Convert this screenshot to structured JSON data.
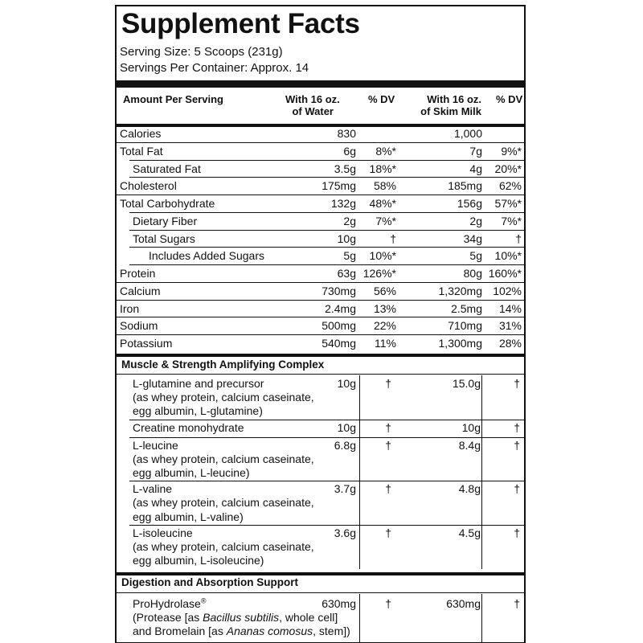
{
  "title": "Supplement Facts",
  "serving_size": "Serving Size: 5 Scoops (231g)",
  "servings_per_container": "Servings Per Container: Approx. 14",
  "header": {
    "amount": "Amount Per Serving",
    "water_line1": "With 16 oz.",
    "water_line2": "of Water",
    "dv1": "% DV",
    "milk_line1": "With 16 oz.",
    "milk_line2": "of Skim Milk",
    "dv2": "% DV"
  },
  "nutrients": [
    {
      "name": "Calories",
      "water": "830",
      "dv1": "",
      "milk": "1,000",
      "dv2": "",
      "indent": 0
    },
    {
      "name": "Total Fat",
      "water": "6g",
      "dv1": "8%*",
      "milk": "7g",
      "dv2": "9%*",
      "indent": 0
    },
    {
      "name": "Saturated Fat",
      "water": "3.5g",
      "dv1": "18%*",
      "milk": "4g",
      "dv2": "20%*",
      "indent": 1
    },
    {
      "name": "Cholesterol",
      "water": "175mg",
      "dv1": "58%",
      "milk": "185mg",
      "dv2": "62%",
      "indent": 0
    },
    {
      "name": "Total Carbohydrate",
      "water": "132g",
      "dv1": "48%*",
      "milk": "156g",
      "dv2": "57%*",
      "indent": 0
    },
    {
      "name": "Dietary Fiber",
      "water": "2g",
      "dv1": "7%*",
      "milk": "2g",
      "dv2": "7%*",
      "indent": 1
    },
    {
      "name": "Total Sugars",
      "water": "10g",
      "dv1": "†",
      "milk": "34g",
      "dv2": "†",
      "indent": 1
    },
    {
      "name": "Includes Added Sugars",
      "water": "5g",
      "dv1": "10%*",
      "milk": "5g",
      "dv2": "10%*",
      "indent": 2
    },
    {
      "name": "Protein",
      "water": "63g",
      "dv1": "126%*",
      "milk": "80g",
      "dv2": "160%*",
      "indent": 0
    },
    {
      "name": "Calcium",
      "water": "730mg",
      "dv1": "56%",
      "milk": "1,320mg",
      "dv2": "102%",
      "indent": 0
    },
    {
      "name": "Iron",
      "water": "2.4mg",
      "dv1": "13%",
      "milk": "2.5mg",
      "dv2": "14%",
      "indent": 0
    },
    {
      "name": "Sodium",
      "water": "500mg",
      "dv1": "22%",
      "milk": "710mg",
      "dv2": "31%",
      "indent": 0
    },
    {
      "name": "Potassium",
      "water": "540mg",
      "dv1": "11%",
      "milk": "1,300mg",
      "dv2": "28%",
      "indent": 0
    }
  ],
  "section1": {
    "title": "Muscle & Strength Amplifying Complex",
    "items": [
      {
        "lines": [
          "L-glutamine and precursor",
          "(as whey protein, calcium caseinate,",
          "egg albumin, L-glutamine)"
        ],
        "water": "10g",
        "dv1": "†",
        "milk": "15.0g",
        "dv2": "†"
      },
      {
        "lines": [
          "Creatine monohydrate"
        ],
        "water": "10g",
        "dv1": "†",
        "milk": "10g",
        "dv2": "†"
      },
      {
        "lines": [
          "L-leucine",
          "(as whey protein, calcium caseinate,",
          "egg albumin, L-leucine)"
        ],
        "water": "6.8g",
        "dv1": "†",
        "milk": "8.4g",
        "dv2": "†"
      },
      {
        "lines": [
          "L-valine",
          "(as whey protein, calcium caseinate,",
          "egg albumin, L-valine)"
        ],
        "water": "3.7g",
        "dv1": "†",
        "milk": "4.8g",
        "dv2": "†"
      },
      {
        "lines": [
          "L-isoleucine",
          "(as whey protein, calcium caseinate,",
          "egg albumin, L-isoleucine)"
        ],
        "water": "3.6g",
        "dv1": "†",
        "milk": "4.5g",
        "dv2": "†"
      }
    ]
  },
  "section2": {
    "title": "Digestion and Absorption Support",
    "item": {
      "name": "ProHydrolase",
      "reg": "®",
      "line2_prefix": "(Protease [as ",
      "line2_italic": "Bacillus subtilis",
      "line2_suffix": ", whole cell]",
      "line3_prefix": "and Bromelain [as ",
      "line3_italic": "Ananas comosus",
      "line3_suffix": ", stem])",
      "water": "630mg",
      "dv1": "†",
      "milk": "630mg",
      "dv2": "†"
    }
  }
}
